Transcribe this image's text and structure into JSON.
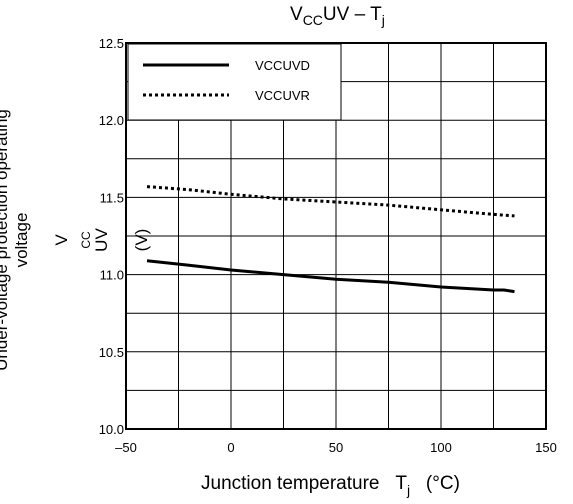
{
  "chart_data": {
    "type": "line",
    "title_main": "V",
    "title_sub": "CC",
    "title_rest": "UV – T",
    "title_end": "j",
    "xlabel": "Junction temperature",
    "xlabel_sym": "T",
    "xlabel_sub": "j",
    "xlabel_unit": "(°C)",
    "ylabel_line1": "Under-voltage protection operating",
    "ylabel_line2_text": "voltage",
    "ylabel_sym": "V",
    "ylabel_sym_sub": "CC",
    "ylabel_sym_rest": "UV",
    "ylabel_unit": "(V)",
    "xlim": [
      -50,
      150
    ],
    "ylim": [
      10.0,
      12.5
    ],
    "x_ticks": [
      {
        "v": -50,
        "label": "–50"
      },
      {
        "v": 0,
        "label": "0"
      },
      {
        "v": 50,
        "label": "50"
      },
      {
        "v": 100,
        "label": "100"
      },
      {
        "v": 150,
        "label": "150"
      }
    ],
    "y_ticks": [
      {
        "v": 10.0,
        "label": "10.0"
      },
      {
        "v": 10.5,
        "label": "10.5"
      },
      {
        "v": 11.0,
        "label": "11.0"
      },
      {
        "v": 11.5,
        "label": "11.5"
      },
      {
        "v": 12.0,
        "label": "12.0"
      },
      {
        "v": 12.5,
        "label": "12.5"
      }
    ],
    "x_grid_step": 25,
    "y_grid_step": 0.25,
    "grid": true,
    "legend_position": "top-left",
    "series": [
      {
        "name": "VCCUVD",
        "style": "solid",
        "color": "#000000",
        "points": [
          [
            -40,
            11.09
          ],
          [
            -20,
            11.06
          ],
          [
            0,
            11.03
          ],
          [
            25,
            11.0
          ],
          [
            50,
            10.97
          ],
          [
            75,
            10.95
          ],
          [
            100,
            10.92
          ],
          [
            125,
            10.9
          ],
          [
            130,
            10.9
          ],
          [
            135,
            10.89
          ]
        ]
      },
      {
        "name": "VCCUVR",
        "style": "dotted",
        "color": "#000000",
        "points": [
          [
            -40,
            11.57
          ],
          [
            -20,
            11.55
          ],
          [
            0,
            11.52
          ],
          [
            25,
            11.49
          ],
          [
            50,
            11.47
          ],
          [
            75,
            11.45
          ],
          [
            100,
            11.42
          ],
          [
            125,
            11.39
          ],
          [
            135,
            11.38
          ]
        ]
      }
    ]
  }
}
